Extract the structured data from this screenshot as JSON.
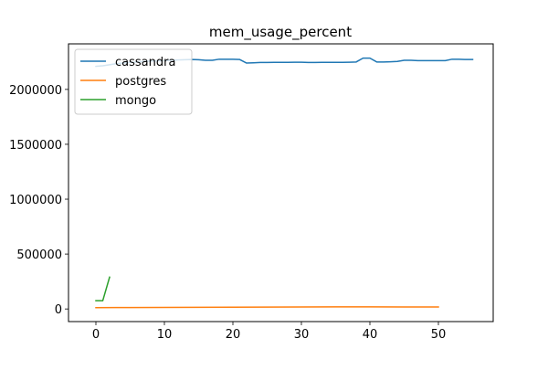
{
  "chart_data": {
    "type": "line",
    "title": "mem_usage_percent",
    "xlabel": "",
    "ylabel": "",
    "xlim": [
      -4,
      58
    ],
    "ylim": [
      -115000,
      2415000
    ],
    "xticks": [
      0,
      10,
      20,
      30,
      40,
      50
    ],
    "yticks": [
      0,
      500000,
      1000000,
      1500000,
      2000000
    ],
    "grid": false,
    "legend_position": "top-left",
    "series": [
      {
        "name": "cassandra",
        "color": "#1f77b4",
        "x": [
          0,
          1,
          2,
          3,
          4,
          5,
          6,
          7,
          8,
          9,
          10,
          11,
          12,
          13,
          14,
          15,
          16,
          17,
          18,
          19,
          20,
          21,
          22,
          23,
          24,
          25,
          26,
          27,
          28,
          29,
          30,
          31,
          32,
          33,
          34,
          35,
          36,
          37,
          38,
          39,
          40,
          41,
          42,
          43,
          44,
          45,
          46,
          47,
          48,
          49,
          50,
          51,
          52,
          53,
          54,
          55
        ],
        "y": [
          2210000,
          2215000,
          2225000,
          2235000,
          2240000,
          2245000,
          2250000,
          2255000,
          2258000,
          2260000,
          2262000,
          2265000,
          2268000,
          2270000,
          2272000,
          2270000,
          2265000,
          2265000,
          2275000,
          2275000,
          2275000,
          2272000,
          2240000,
          2242000,
          2245000,
          2245000,
          2246000,
          2247000,
          2247000,
          2248000,
          2248000,
          2245000,
          2245000,
          2246000,
          2246000,
          2247000,
          2247000,
          2248000,
          2250000,
          2285000,
          2285000,
          2250000,
          2250000,
          2252000,
          2255000,
          2265000,
          2265000,
          2262000,
          2262000,
          2262000,
          2262000,
          2262000,
          2275000,
          2275000,
          2272000,
          2272000
        ]
      },
      {
        "name": "postgres",
        "color": "#ff7f0e",
        "x": [
          0,
          5,
          10,
          15,
          20,
          25,
          30,
          35,
          40,
          45,
          50
        ],
        "y": [
          12000,
          13000,
          14000,
          15000,
          16000,
          17000,
          18000,
          19000,
          19000,
          18500,
          18000
        ]
      },
      {
        "name": "mongo",
        "color": "#2ca02c",
        "x": [
          0,
          1,
          2
        ],
        "y": [
          75000,
          75000,
          290000
        ]
      }
    ]
  }
}
